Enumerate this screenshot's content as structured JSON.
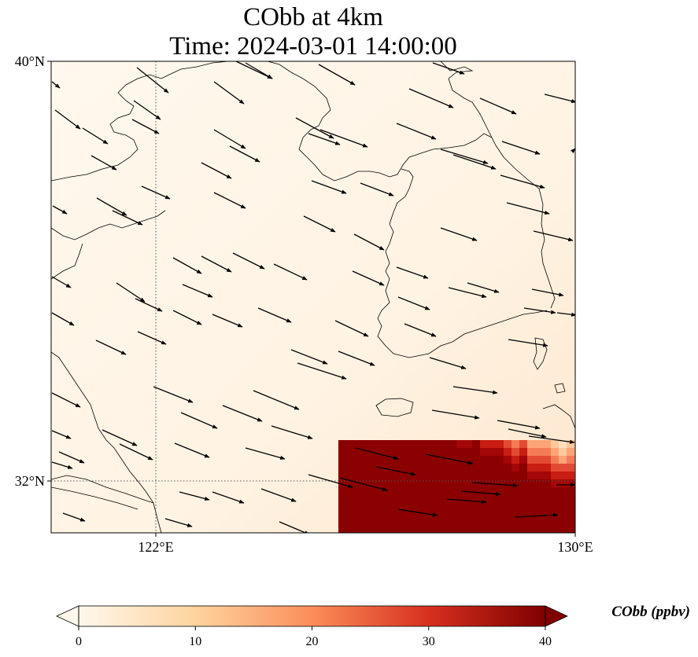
{
  "title": {
    "line1": "CObb at 4km",
    "line2": "Time: 2024-03-01 14:00:00"
  },
  "map": {
    "projection": "PlateCarree",
    "lon_range": [
      120,
      130
    ],
    "lat_range": [
      31,
      40
    ],
    "lat_ticks": [
      {
        "value": 40,
        "label": "40°N"
      },
      {
        "value": 32,
        "label": "32°N"
      }
    ],
    "lon_ticks": [
      {
        "value": 122,
        "label": "122°E"
      },
      {
        "value": 130,
        "label": "130°E"
      }
    ],
    "gridlines": "dotted",
    "field_name": "CObb",
    "field_units": "ppbv",
    "wind_direction_description": "west-northwesterly to westerly flow across region",
    "colors": {
      "background_low": "#fff7ec",
      "mid": "#fdbb84",
      "high": "#d7301f",
      "max": "#7f0000",
      "coast": "#000000"
    }
  },
  "colorbar": {
    "label": "CObb (ppbv)",
    "min": 0,
    "max": 40,
    "ticks": [
      "0",
      "10",
      "20",
      "30",
      "40"
    ],
    "extend": "both",
    "cmap": "OrRd"
  }
}
